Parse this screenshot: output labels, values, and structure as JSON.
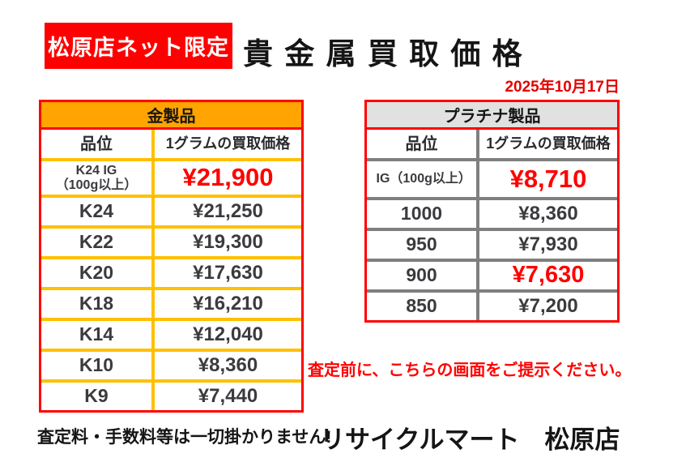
{
  "page": {
    "badge": "松原店ネット限定",
    "title": "貴 金 属 買 取 価 格",
    "date": "2025年10月17日",
    "notice_red": "査定前に、こちらの画面をご提示ください。",
    "footer_left": "査定料・手数料等は一切掛かりません!",
    "footer_right": "リサイクルマート　松原店"
  },
  "colors": {
    "accent_red": "#ff0000",
    "gold_header_bg": "#ffa400",
    "gold_grid": "#ffc000",
    "platinum_header_bg": "#e2e1e1",
    "platinum_grid": "#7f7f7f",
    "text_dark": "#3b3b3f"
  },
  "gold_table": {
    "title": "金製品",
    "col_grade": "品位",
    "col_price": "1グラムの買取価格",
    "rows": [
      {
        "grade": "K24 IG",
        "grade_sub": "（100g以上）",
        "price": "¥21,900",
        "highlight": true
      },
      {
        "grade": "K24",
        "price": "¥21,250"
      },
      {
        "grade": "K22",
        "price": "¥19,300"
      },
      {
        "grade": "K20",
        "price": "¥17,630"
      },
      {
        "grade": "K18",
        "price": "¥16,210"
      },
      {
        "grade": "K14",
        "price": "¥12,040"
      },
      {
        "grade": "K10",
        "price": "¥8,360"
      },
      {
        "grade": "K9",
        "price": "¥7,440"
      }
    ]
  },
  "platinum_table": {
    "title": "プラチナ製品",
    "col_grade": "品位",
    "col_price": "1グラムの買取価格",
    "rows": [
      {
        "grade": "IG（100g以上）",
        "price": "¥8,710",
        "highlight": true
      },
      {
        "grade": "1000",
        "price": "¥8,360"
      },
      {
        "grade": "950",
        "price": "¥7,930"
      },
      {
        "grade": "900",
        "price": "¥7,630",
        "highlight": true
      },
      {
        "grade": "850",
        "price": "¥7,200"
      }
    ]
  }
}
